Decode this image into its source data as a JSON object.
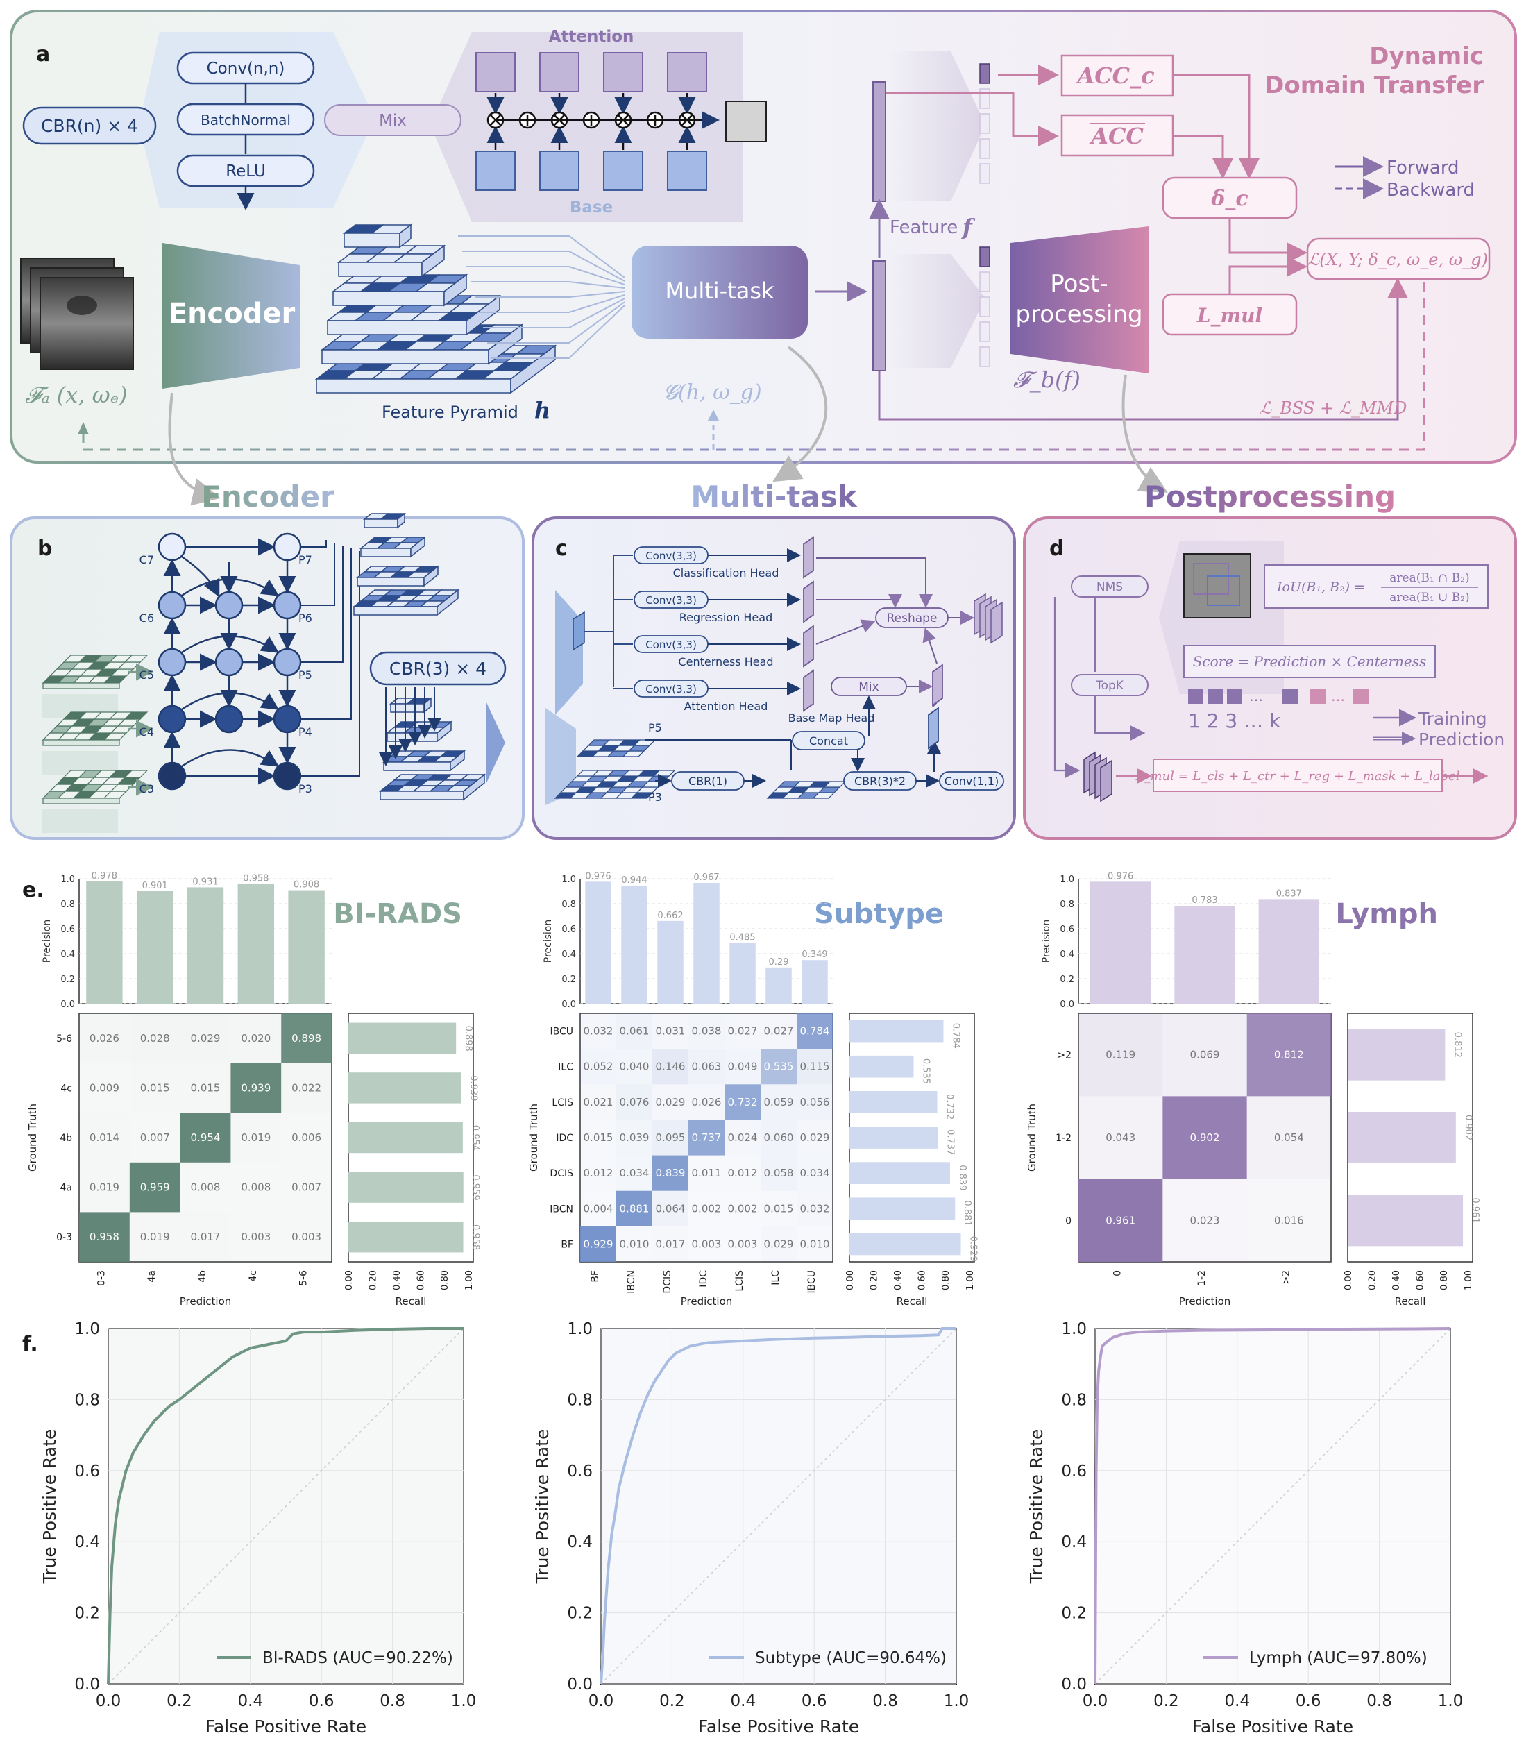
{
  "panel_labels": {
    "a": "a",
    "b": "b",
    "c": "c",
    "d": "d",
    "e": "e.",
    "f": "f."
  },
  "colors": {
    "green": "#7d9d8f",
    "blue": "#9fb3d9",
    "purple": "#8b73ab",
    "pink": "#c77fa6",
    "navy": "#1f3a6e"
  },
  "panel_a": {
    "cbr": "CBR(n) × 4",
    "conv": "Conv(n,n)",
    "batchnorm": "BatchNormal",
    "relu": "ReLU",
    "mix": "Mix",
    "attention": "Attention",
    "base": "Base",
    "encoder": "Encoder",
    "feature_pyramid": "Feature Pyramid",
    "h_symbol": "h",
    "fa": "𝓕ₐ (x, ωₑ)",
    "multitask": "Multi-task",
    "g": "𝓖(h, ω_g)",
    "feature_f": "Feature",
    "f_symbol": "f",
    "fb": "𝓕_b(f)",
    "post1": "Post-",
    "post2": "processing",
    "acc_c": "ACC_c",
    "acc_bar": "ACC",
    "delta_c": "δ_c",
    "l_mul": "L_mul",
    "loss": "ℒ(X, Y; δ_c, ω_e, ω_g)",
    "bss": "ℒ_BSS + ℒ_MMD",
    "title1": "Dynamic",
    "title2": "Domain Transfer",
    "legend_forward": "Forward",
    "legend_backward": "Backward"
  },
  "section_titles": {
    "encoder": "Encoder",
    "multitask": "Multi-task",
    "postprocessing": "Postprocessing"
  },
  "panel_b": {
    "c_labels": [
      "C7",
      "C6",
      "C5",
      "C4",
      "C3"
    ],
    "p_labels": [
      "P7",
      "P6",
      "P5",
      "P4",
      "P3"
    ],
    "cbr": "CBR(3) × 4"
  },
  "panel_c": {
    "heads": [
      {
        "conv": "Conv(3,3)",
        "name": "Classification Head"
      },
      {
        "conv": "Conv(3,3)",
        "name": "Regression Head"
      },
      {
        "conv": "Conv(3,3)",
        "name": "Centerness Head"
      },
      {
        "conv": "Conv(3,3)",
        "name": "Attention Head"
      }
    ],
    "reshape": "Reshape",
    "mix": "Mix",
    "base_map": "Base Map Head",
    "concat": "Concat",
    "cbr1": "CBR(1)",
    "cbr3": "CBR(3)*2",
    "conv11": "Conv(1,1)",
    "p5": "P5",
    "p3": "P3"
  },
  "panel_d": {
    "nms": "NMS",
    "topk": "TopK",
    "iou": "IoU(B₁, B₂) =",
    "iou_num": "area(B₁ ∩ B₂)",
    "iou_den": "area(B₁ ∪ B₂)",
    "score": "Score = Prediction × Centerness",
    "ranks": "1  2  3 …   k",
    "training": "Training",
    "prediction": "Prediction",
    "lmul": "L_mul = L_cls + L_ctr + L_reg + L_mask + L_label"
  },
  "chart_data": [
    {
      "type": "heatmap",
      "title": "BI-RADS",
      "xlabel": "Prediction",
      "ylabel": "Ground Truth",
      "classes": [
        "0-3",
        "4a",
        "4b",
        "4c",
        "5-6"
      ],
      "matrix_rows_top_to_bottom": [
        "5-6",
        "4c",
        "4b",
        "4a",
        "0-3"
      ],
      "matrix": [
        [
          0.026,
          0.028,
          0.029,
          0.02,
          0.898
        ],
        [
          0.009,
          0.015,
          0.015,
          0.939,
          0.022
        ],
        [
          0.014,
          0.007,
          0.954,
          0.019,
          0.006
        ],
        [
          0.019,
          0.959,
          0.008,
          0.008,
          0.007
        ],
        [
          0.958,
          0.019,
          0.017,
          0.003,
          0.003
        ]
      ],
      "precision": [
        0.978,
        0.901,
        0.931,
        0.958,
        0.908
      ],
      "precision_label": "Precision",
      "precision_ticks": [
        "0.0",
        "0.2",
        "0.4",
        "0.6",
        "0.8",
        "1.0"
      ],
      "recall_top_to_bottom": [
        0.898,
        0.939,
        0.954,
        0.959,
        0.958
      ],
      "recall_label": "Recall",
      "recall_ticks": [
        "0.00",
        "0.20",
        "0.40",
        "0.60",
        "0.80",
        "1.00"
      ]
    },
    {
      "type": "heatmap",
      "title": "Subtype",
      "xlabel": "Prediction",
      "ylabel": "Ground Truth",
      "classes": [
        "BF",
        "IBCN",
        "DCIS",
        "IDC",
        "LCIS",
        "ILC",
        "IBCU"
      ],
      "matrix_rows_top_to_bottom": [
        "IBCU",
        "ILC",
        "LCIS",
        "IDC",
        "DCIS",
        "IBCN",
        "BF"
      ],
      "matrix": [
        [
          0.032,
          0.061,
          0.031,
          0.038,
          0.027,
          0.027,
          0.784
        ],
        [
          0.052,
          0.04,
          0.146,
          0.063,
          0.049,
          0.535,
          0.115
        ],
        [
          0.021,
          0.076,
          0.029,
          0.026,
          0.732,
          0.059,
          0.056
        ],
        [
          0.015,
          0.039,
          0.095,
          0.737,
          0.024,
          0.06,
          0.029
        ],
        [
          0.012,
          0.034,
          0.839,
          0.011,
          0.012,
          0.058,
          0.034
        ],
        [
          0.004,
          0.881,
          0.064,
          0.002,
          0.002,
          0.015,
          0.032
        ],
        [
          0.929,
          0.01,
          0.017,
          0.003,
          0.003,
          0.029,
          0.01
        ]
      ],
      "precision": [
        0.976,
        0.944,
        0.662,
        0.967,
        0.485,
        0.29,
        0.349
      ],
      "precision_label": "Precision",
      "precision_ticks": [
        "0.0",
        "0.2",
        "0.4",
        "0.6",
        "0.8",
        "1.0"
      ],
      "recall_top_to_bottom": [
        0.784,
        0.535,
        0.732,
        0.737,
        0.839,
        0.881,
        0.929
      ],
      "recall_label": "Recall",
      "recall_ticks": [
        "0.00",
        "0.20",
        "0.40",
        "0.60",
        "0.80",
        "1.00"
      ]
    },
    {
      "type": "heatmap",
      "title": "Lymph",
      "xlabel": "Prediction",
      "ylabel": "Ground Truth",
      "classes": [
        "0",
        "1-2",
        ">2"
      ],
      "matrix_rows_top_to_bottom": [
        ">2",
        "1-2",
        "0"
      ],
      "matrix": [
        [
          0.119,
          0.069,
          0.812
        ],
        [
          0.043,
          0.902,
          0.054
        ],
        [
          0.961,
          0.023,
          0.016
        ]
      ],
      "precision": [
        0.976,
        0.783,
        0.837
      ],
      "precision_label": "Precision",
      "precision_ticks": [
        "0.0",
        "0.2",
        "0.4",
        "0.6",
        "0.8",
        "1.0"
      ],
      "recall_top_to_bottom": [
        0.812,
        0.902,
        0.961
      ],
      "recall_label": "Recall",
      "recall_ticks": [
        "0.00",
        "0.20",
        "0.40",
        "0.60",
        "0.80",
        "1.00"
      ]
    },
    {
      "type": "line",
      "xlabel": "False Positive Rate",
      "ylabel": "True Positive Rate",
      "xlim": [
        0,
        1
      ],
      "ylim": [
        0,
        1
      ],
      "ticks": [
        "0.0",
        "0.2",
        "0.4",
        "0.6",
        "0.8",
        "1.0"
      ],
      "series": [
        {
          "name": "BI-RADS (AUC=90.22%)",
          "x": [
            0,
            0.005,
            0.01,
            0.02,
            0.03,
            0.05,
            0.07,
            0.1,
            0.13,
            0.17,
            0.2,
            0.25,
            0.3,
            0.35,
            0.4,
            0.45,
            0.5,
            0.52,
            0.55,
            0.6,
            0.7,
            0.8,
            0.9,
            1.0
          ],
          "y": [
            0,
            0.2,
            0.33,
            0.45,
            0.52,
            0.6,
            0.65,
            0.7,
            0.74,
            0.78,
            0.8,
            0.84,
            0.88,
            0.92,
            0.945,
            0.955,
            0.965,
            0.985,
            0.99,
            0.99,
            0.995,
            0.998,
            1.0,
            1.0
          ]
        }
      ]
    },
    {
      "type": "line",
      "xlabel": "False Positive Rate",
      "ylabel": "True Positive Rate",
      "xlim": [
        0,
        1
      ],
      "ylim": [
        0,
        1
      ],
      "ticks": [
        "0.0",
        "0.2",
        "0.4",
        "0.6",
        "0.8",
        "1.0"
      ],
      "series": [
        {
          "name": "Subtype (AUC=90.64%)",
          "x": [
            0,
            0.005,
            0.01,
            0.02,
            0.03,
            0.04,
            0.05,
            0.07,
            0.09,
            0.11,
            0.13,
            0.15,
            0.17,
            0.19,
            0.21,
            0.25,
            0.3,
            0.4,
            0.5,
            0.6,
            0.7,
            0.8,
            0.9,
            0.95,
            0.96,
            1.0
          ],
          "y": [
            0,
            0.08,
            0.18,
            0.32,
            0.42,
            0.48,
            0.55,
            0.63,
            0.7,
            0.76,
            0.81,
            0.85,
            0.88,
            0.91,
            0.93,
            0.95,
            0.96,
            0.965,
            0.97,
            0.973,
            0.975,
            0.978,
            0.98,
            0.982,
            1.0,
            1.0
          ]
        }
      ]
    },
    {
      "type": "line",
      "xlabel": "False Positive Rate",
      "ylabel": "True Positive Rate",
      "xlim": [
        0,
        1
      ],
      "ylim": [
        0,
        1
      ],
      "ticks": [
        "0.0",
        "0.2",
        "0.4",
        "0.6",
        "0.8",
        "1.0"
      ],
      "series": [
        {
          "name": "Lymph (AUC=97.80%)",
          "x": [
            0,
            0.003,
            0.006,
            0.01,
            0.015,
            0.02,
            0.03,
            0.05,
            0.08,
            0.12,
            0.2,
            0.3,
            0.5,
            0.7,
            0.9,
            1.0
          ],
          "y": [
            0,
            0.6,
            0.8,
            0.88,
            0.92,
            0.95,
            0.96,
            0.975,
            0.985,
            0.99,
            0.993,
            0.995,
            0.996,
            0.998,
            0.999,
            1.0
          ]
        }
      ]
    }
  ]
}
